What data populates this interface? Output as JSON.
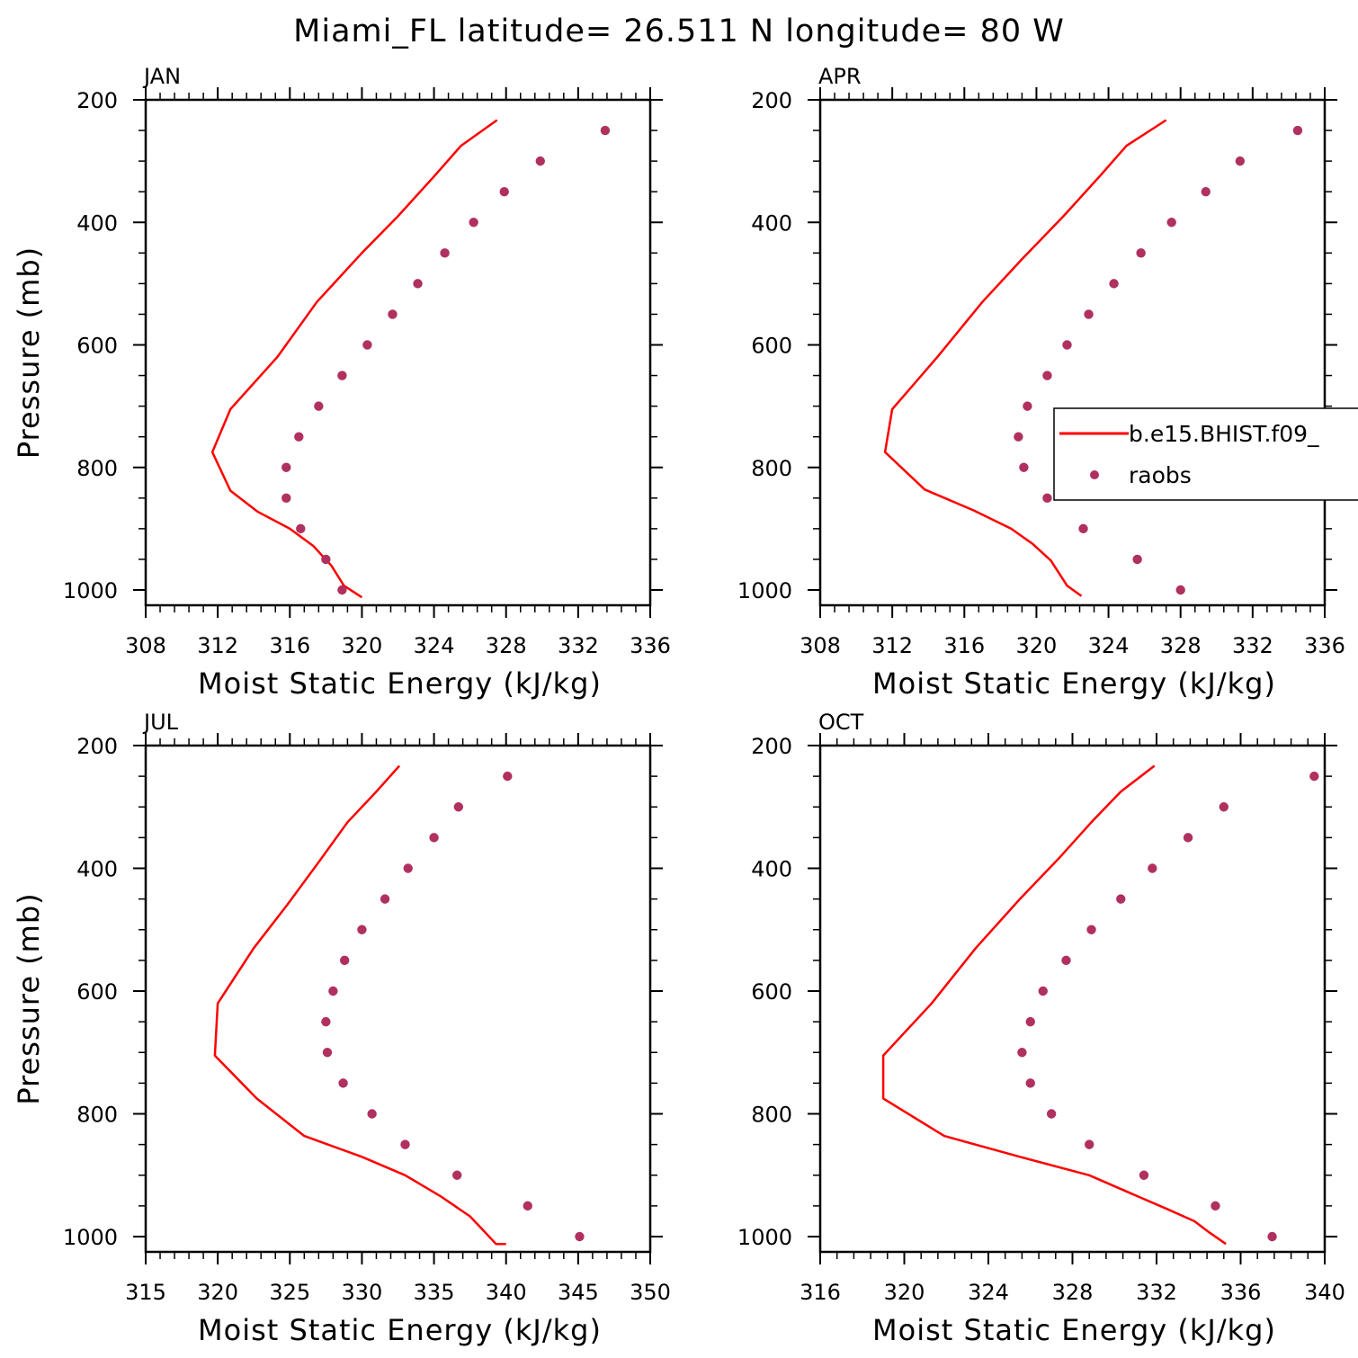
{
  "title": "Miami_FL  latitude= 26.511 N longitude= 80 W",
  "legend": {
    "model_label": "b.e15.BHIST.f09_",
    "obs_label": "raobs"
  },
  "colors": {
    "model": "#ff0000",
    "obs": "#b03060"
  },
  "chart_data": [
    {
      "type": "line",
      "panel": "JAN",
      "xlabel": "Moist Static Energy (kJ/kg)",
      "ylabel": "Pressure (mb)",
      "xlim": [
        308,
        336
      ],
      "ylim": [
        1025,
        200
      ],
      "xticks": [
        308,
        312,
        316,
        320,
        324,
        328,
        332,
        336
      ],
      "yticks": [
        200,
        400,
        600,
        800,
        1000
      ],
      "series": [
        {
          "name": "b.e15.BHIST.f09_",
          "kind": "line",
          "x": [
            327.5,
            325.5,
            324.0,
            322.0,
            320.0,
            317.5,
            315.3,
            312.7,
            311.7,
            312.7,
            314.2,
            316.0,
            317.3,
            318.3,
            319.0,
            320.0
          ],
          "y": [
            233,
            275,
            325,
            390,
            450,
            530,
            620,
            705,
            775,
            838,
            872,
            900,
            928,
            960,
            993,
            1012
          ]
        },
        {
          "name": "raobs",
          "kind": "scatter",
          "x": [
            333.5,
            329.9,
            327.9,
            326.2,
            324.6,
            323.1,
            321.7,
            320.3,
            318.9,
            317.6,
            316.5,
            315.8,
            315.8,
            316.6,
            318.0,
            318.9
          ],
          "y": [
            250,
            300,
            350,
            400,
            450,
            500,
            550,
            600,
            650,
            700,
            750,
            800,
            850,
            900,
            950,
            1000
          ]
        }
      ]
    },
    {
      "type": "line",
      "panel": "APR",
      "xlabel": "Moist Static Energy (kJ/kg)",
      "ylabel": "",
      "xlim": [
        308,
        336
      ],
      "ylim": [
        1025,
        200
      ],
      "xticks": [
        308,
        312,
        316,
        320,
        324,
        328,
        332,
        336
      ],
      "yticks": [
        200,
        400,
        600,
        800,
        1000
      ],
      "series": [
        {
          "name": "b.e15.BHIST.f09_",
          "kind": "line",
          "x": [
            327.2,
            325.0,
            323.5,
            321.5,
            319.2,
            317.0,
            314.5,
            312.0,
            311.6,
            313.8,
            316.5,
            318.6,
            319.8,
            320.8,
            321.7,
            322.5
          ],
          "y": [
            233,
            275,
            325,
            390,
            460,
            530,
            620,
            705,
            775,
            836,
            870,
            900,
            925,
            952,
            993,
            1010
          ]
        },
        {
          "name": "raobs",
          "kind": "scatter",
          "x": [
            334.5,
            331.3,
            329.4,
            327.5,
            325.8,
            324.3,
            322.9,
            321.7,
            320.6,
            319.5,
            319.0,
            319.3,
            320.6,
            322.6,
            325.6,
            328.0
          ],
          "y": [
            250,
            300,
            350,
            400,
            450,
            500,
            550,
            600,
            650,
            700,
            750,
            800,
            850,
            900,
            950,
            1000
          ]
        }
      ]
    },
    {
      "type": "line",
      "panel": "JUL",
      "xlabel": "Moist Static Energy (kJ/kg)",
      "ylabel": "Pressure (mb)",
      "xlim": [
        315,
        350
      ],
      "ylim": [
        1025,
        200
      ],
      "xticks": [
        315,
        320,
        325,
        330,
        335,
        340,
        345,
        350
      ],
      "yticks": [
        200,
        400,
        600,
        800,
        1000
      ],
      "series": [
        {
          "name": "b.e15.BHIST.f09_",
          "kind": "line",
          "x": [
            332.6,
            331.0,
            329.0,
            327.0,
            324.8,
            322.5,
            320.0,
            319.8,
            322.7,
            326.0,
            330.0,
            333.0,
            335.5,
            337.5,
            338.5,
            339.3,
            340.0
          ],
          "y": [
            233,
            275,
            325,
            390,
            460,
            530,
            620,
            705,
            775,
            836,
            870,
            900,
            935,
            967,
            992,
            1012,
            1012
          ]
        },
        {
          "name": "raobs",
          "kind": "scatter",
          "x": [
            340.1,
            336.7,
            335.0,
            333.2,
            331.6,
            330.0,
            328.8,
            328.0,
            327.5,
            327.6,
            328.7,
            330.7,
            333.0,
            336.6,
            341.5,
            345.1
          ],
          "y": [
            250,
            300,
            350,
            400,
            450,
            500,
            550,
            600,
            650,
            700,
            750,
            800,
            850,
            900,
            950,
            1000
          ]
        }
      ]
    },
    {
      "type": "line",
      "panel": "OCT",
      "xlabel": "Moist Static Energy (kJ/kg)",
      "ylabel": "",
      "xlim": [
        316,
        340
      ],
      "ylim": [
        1025,
        200
      ],
      "xticks": [
        316,
        320,
        324,
        328,
        332,
        336,
        340
      ],
      "yticks": [
        200,
        400,
        600,
        800,
        1000
      ],
      "series": [
        {
          "name": "b.e15.BHIST.f09_",
          "kind": "line",
          "x": [
            331.9,
            330.3,
            328.9,
            327.4,
            325.5,
            323.4,
            321.3,
            319.0,
            319.0,
            321.9,
            325.5,
            328.8,
            330.8,
            332.5,
            333.8,
            334.5,
            335.3
          ],
          "y": [
            233,
            275,
            325,
            382,
            450,
            530,
            620,
            705,
            775,
            836,
            870,
            900,
            930,
            955,
            975,
            993,
            1012
          ]
        },
        {
          "name": "raobs",
          "kind": "scatter",
          "x": [
            339.5,
            335.2,
            333.5,
            331.8,
            330.3,
            328.9,
            327.7,
            326.6,
            326.0,
            325.6,
            326.0,
            327.0,
            328.8,
            331.4,
            334.8,
            337.5
          ],
          "y": [
            250,
            300,
            350,
            400,
            450,
            500,
            550,
            600,
            650,
            700,
            750,
            800,
            850,
            900,
            950,
            1000
          ]
        }
      ]
    }
  ]
}
